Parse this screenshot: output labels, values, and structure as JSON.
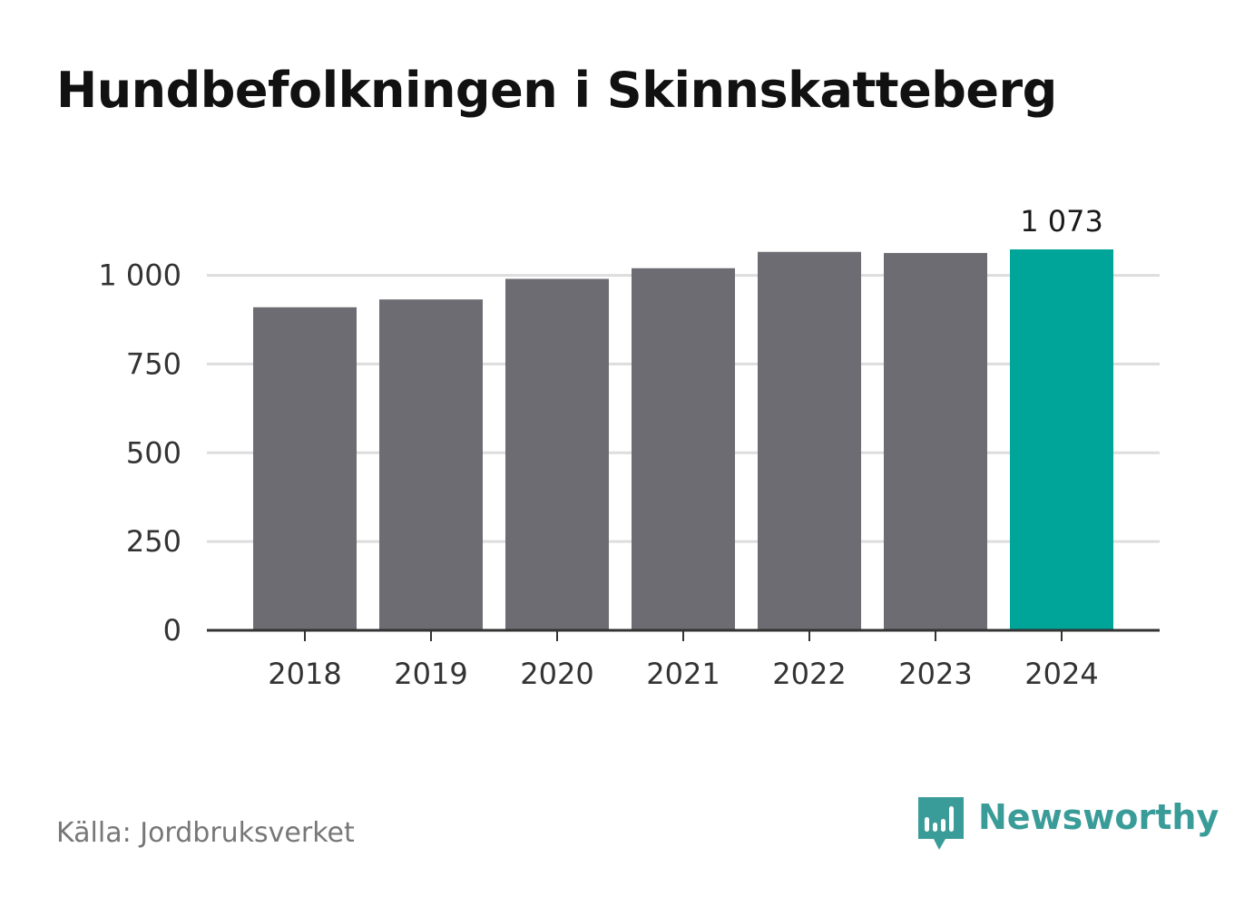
{
  "title": "Hundbefolkningen i Skinnskatteberg",
  "source": "Källa: Jordbruksverket",
  "brand": {
    "name": "Newsworthy",
    "logo_icon": "newsworthy-chart-bubble-icon",
    "color": "#3a9c98"
  },
  "colors": {
    "bar": "#6d6c72",
    "highlight": "#00a59a",
    "grid": "#dddddd",
    "axis": "#333333"
  },
  "chart_data": {
    "type": "bar",
    "categories": [
      "2018",
      "2019",
      "2020",
      "2021",
      "2022",
      "2023",
      "2024"
    ],
    "values": [
      910,
      932,
      990,
      1020,
      1066,
      1063,
      1073
    ],
    "highlight_index": 6,
    "value_labels": [
      {
        "index": 6,
        "text": "1 073"
      }
    ],
    "yticks": [
      0,
      250,
      500,
      750,
      1000
    ],
    "ytick_labels": [
      "0",
      "250",
      "500",
      "750",
      "1 000"
    ],
    "ylim": [
      0,
      1073
    ],
    "grid": true,
    "legend": "none",
    "title": "Hundbefolkningen i Skinnskatteberg",
    "xlabel": "",
    "ylabel": ""
  }
}
